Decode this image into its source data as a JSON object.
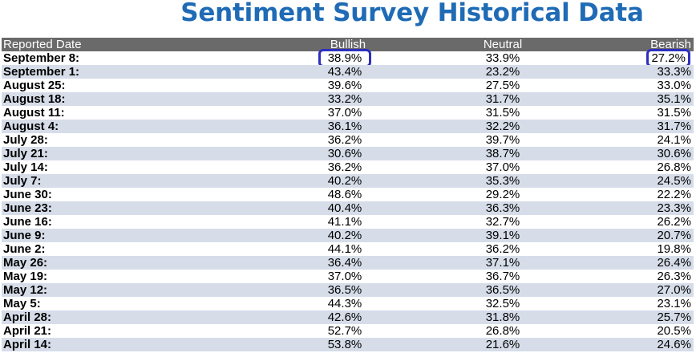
{
  "title": "Sentiment Survey Historical Data",
  "columns": {
    "date": "Reported Date",
    "bullish": "Bullish",
    "neutral": "Neutral",
    "bearish": "Bearish"
  },
  "rows": [
    {
      "date": "September 8:",
      "bullish": "38.9%",
      "neutral": "33.9%",
      "bearish": "27.2%"
    },
    {
      "date": "September 1:",
      "bullish": "43.4%",
      "neutral": "23.2%",
      "bearish": "33.3%"
    },
    {
      "date": "August 25:",
      "bullish": "39.6%",
      "neutral": "27.5%",
      "bearish": "33.0%"
    },
    {
      "date": "August 18:",
      "bullish": "33.2%",
      "neutral": "31.7%",
      "bearish": "35.1%"
    },
    {
      "date": "August 11:",
      "bullish": "37.0%",
      "neutral": "31.5%",
      "bearish": "31.5%"
    },
    {
      "date": "August 4:",
      "bullish": "36.1%",
      "neutral": "32.2%",
      "bearish": "31.7%"
    },
    {
      "date": "July 28:",
      "bullish": "36.2%",
      "neutral": "39.7%",
      "bearish": "24.1%"
    },
    {
      "date": "July 21:",
      "bullish": "30.6%",
      "neutral": "38.7%",
      "bearish": "30.6%"
    },
    {
      "date": "July 14:",
      "bullish": "36.2%",
      "neutral": "37.0%",
      "bearish": "26.8%"
    },
    {
      "date": "July 7:",
      "bullish": "40.2%",
      "neutral": "35.3%",
      "bearish": "24.5%"
    },
    {
      "date": "June 30:",
      "bullish": "48.6%",
      "neutral": "29.2%",
      "bearish": "22.2%"
    },
    {
      "date": "June 23:",
      "bullish": "40.4%",
      "neutral": "36.3%",
      "bearish": "23.3%"
    },
    {
      "date": "June 16:",
      "bullish": "41.1%",
      "neutral": "32.7%",
      "bearish": "26.2%"
    },
    {
      "date": "June 9:",
      "bullish": "40.2%",
      "neutral": "39.1%",
      "bearish": "20.7%"
    },
    {
      "date": "June 2:",
      "bullish": "44.1%",
      "neutral": "36.2%",
      "bearish": "19.8%"
    },
    {
      "date": "May 26:",
      "bullish": "36.4%",
      "neutral": "37.1%",
      "bearish": "26.4%"
    },
    {
      "date": "May 19:",
      "bullish": "37.0%",
      "neutral": "36.7%",
      "bearish": "26.3%"
    },
    {
      "date": "May 12:",
      "bullish": "36.5%",
      "neutral": "36.5%",
      "bearish": "27.0%"
    },
    {
      "date": "May 5:",
      "bullish": "44.3%",
      "neutral": "32.5%",
      "bearish": "23.1%"
    },
    {
      "date": "April 28:",
      "bullish": "42.6%",
      "neutral": "31.8%",
      "bearish": "25.7%"
    },
    {
      "date": "April 21:",
      "bullish": "52.7%",
      "neutral": "26.8%",
      "bearish": "20.5%"
    },
    {
      "date": "April 14:",
      "bullish": "53.8%",
      "neutral": "21.6%",
      "bearish": "24.6%"
    }
  ],
  "highlight_color": "#2e2fbf",
  "title_color": "#1f6bb5",
  "header_color": "#6a6a6a",
  "stripe_color": "#d6dde9"
}
